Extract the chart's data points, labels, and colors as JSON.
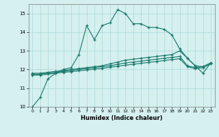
{
  "xlabel": "Humidex (Indice chaleur)",
  "background_color": "#d5f0ee",
  "line_color": "#1a7a6e",
  "xlim": [
    -0.5,
    23.5
  ],
  "ylim": [
    10,
    15.5
  ],
  "yticks": [
    10,
    11,
    12,
    13,
    14,
    15
  ],
  "xticks": [
    0,
    1,
    2,
    3,
    4,
    5,
    6,
    7,
    8,
    9,
    10,
    11,
    12,
    13,
    14,
    15,
    16,
    17,
    18,
    19,
    20,
    21,
    22,
    23
  ],
  "series1_y": [
    10.0,
    10.5,
    11.5,
    11.8,
    12.0,
    12.1,
    12.8,
    14.35,
    13.6,
    14.35,
    14.5,
    15.2,
    15.0,
    14.45,
    14.45,
    14.25,
    14.25,
    14.15,
    13.85,
    13.1,
    12.6,
    12.2,
    11.8,
    12.35
  ],
  "series2_y": [
    11.8,
    11.8,
    11.85,
    11.9,
    11.95,
    12.0,
    12.05,
    12.1,
    12.15,
    12.2,
    12.3,
    12.4,
    12.5,
    12.55,
    12.6,
    12.65,
    12.7,
    12.75,
    12.8,
    13.0,
    12.6,
    12.2,
    12.15,
    12.35
  ],
  "series3_y": [
    11.75,
    11.75,
    11.8,
    11.85,
    11.9,
    11.95,
    12.0,
    12.05,
    12.1,
    12.15,
    12.2,
    12.28,
    12.35,
    12.4,
    12.45,
    12.5,
    12.55,
    12.6,
    12.65,
    12.7,
    12.2,
    12.1,
    12.15,
    12.35
  ],
  "series4_y": [
    11.7,
    11.7,
    11.75,
    11.8,
    11.85,
    11.88,
    11.93,
    11.97,
    12.02,
    12.06,
    12.12,
    12.18,
    12.23,
    12.28,
    12.33,
    12.38,
    12.43,
    12.48,
    12.53,
    12.58,
    12.15,
    12.05,
    12.1,
    12.3
  ],
  "grid_color": "#a8d8d8"
}
